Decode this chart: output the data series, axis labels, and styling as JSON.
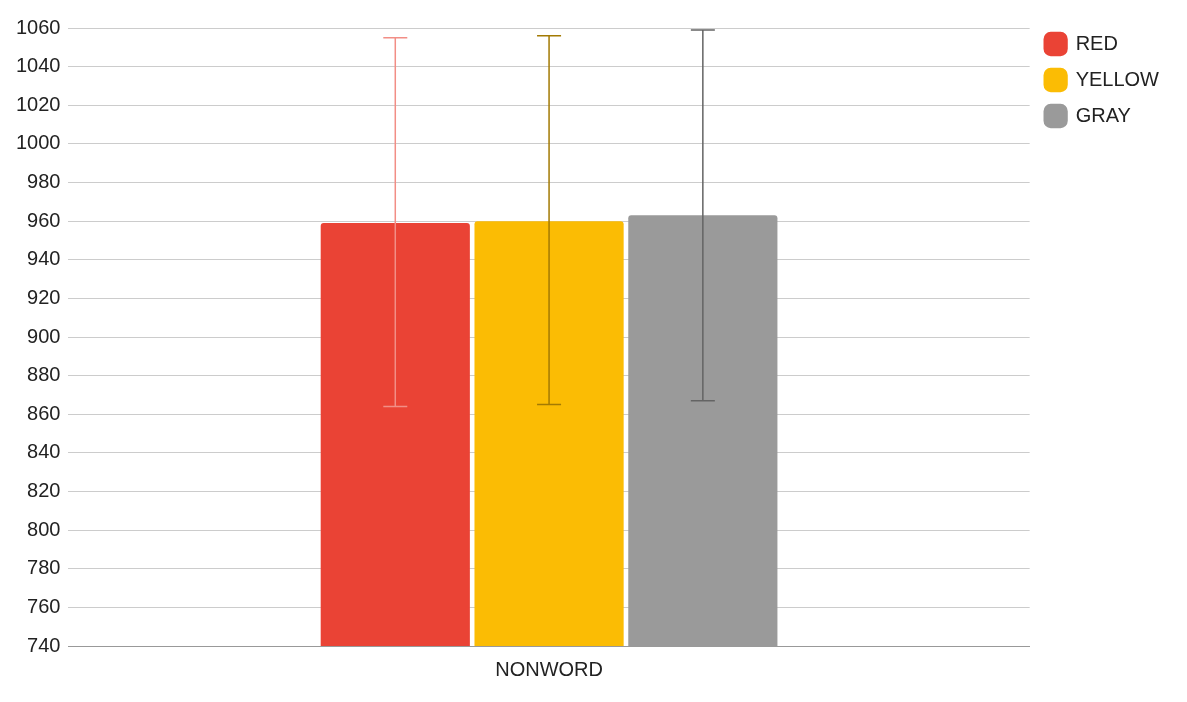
{
  "chart_data": {
    "type": "bar",
    "categories": [
      "NONWORD"
    ],
    "series": [
      {
        "name": "RED",
        "color": "#ea4335",
        "values": [
          959
        ],
        "errors": [
          [
            864,
            1055
          ]
        ]
      },
      {
        "name": "YELLOW",
        "color": "#fbbc04",
        "values": [
          960
        ],
        "errors": [
          [
            865,
            1056
          ]
        ]
      },
      {
        "name": "GRAY",
        "color": "#9a9a9a",
        "values": [
          963
        ],
        "errors": [
          [
            867,
            1059
          ]
        ]
      }
    ],
    "ylim": [
      740,
      1060
    ],
    "yticks": [
      740,
      760,
      780,
      800,
      820,
      840,
      860,
      880,
      900,
      920,
      940,
      960,
      980,
      1000,
      1020,
      1040,
      1060
    ],
    "grid": "y",
    "legend": "top right"
  }
}
